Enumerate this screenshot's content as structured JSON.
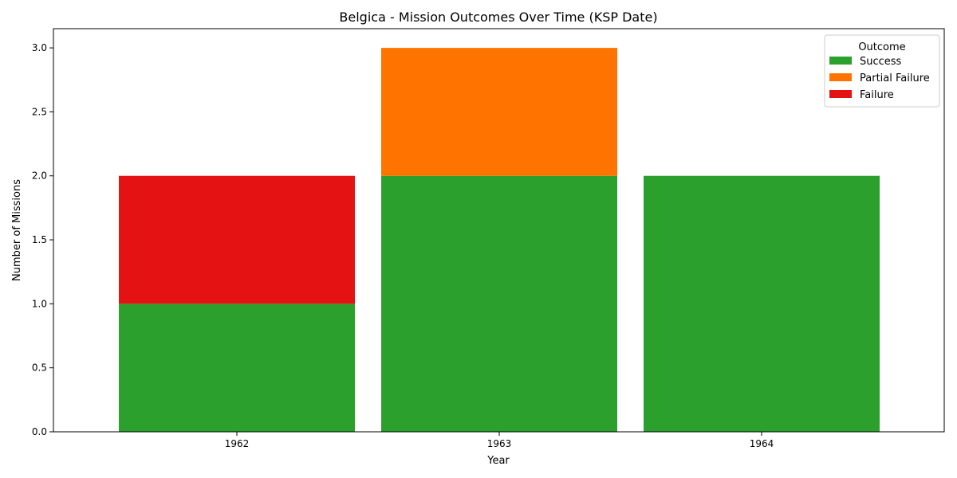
{
  "chart_data": {
    "type": "bar",
    "stacked": true,
    "title": "Belgica - Mission Outcomes Over Time (KSP Date)",
    "xlabel": "Year",
    "ylabel": "Number of Missions",
    "categories": [
      "1962",
      "1963",
      "1964"
    ],
    "series": [
      {
        "name": "Success",
        "values": [
          1,
          2,
          2
        ],
        "color": "#2ca02c"
      },
      {
        "name": "Partial Failure",
        "values": [
          0,
          1,
          0
        ],
        "color": "#ff7400"
      },
      {
        "name": "Failure",
        "values": [
          1,
          0,
          0
        ],
        "color": "#e41212"
      }
    ],
    "ylim": [
      0,
      3.15
    ],
    "yticks": [
      "0.0",
      "0.5",
      "1.0",
      "1.5",
      "2.0",
      "2.5",
      "3.0"
    ],
    "legend": {
      "title": "Outcome",
      "placement": "top-right"
    },
    "grid": false
  }
}
